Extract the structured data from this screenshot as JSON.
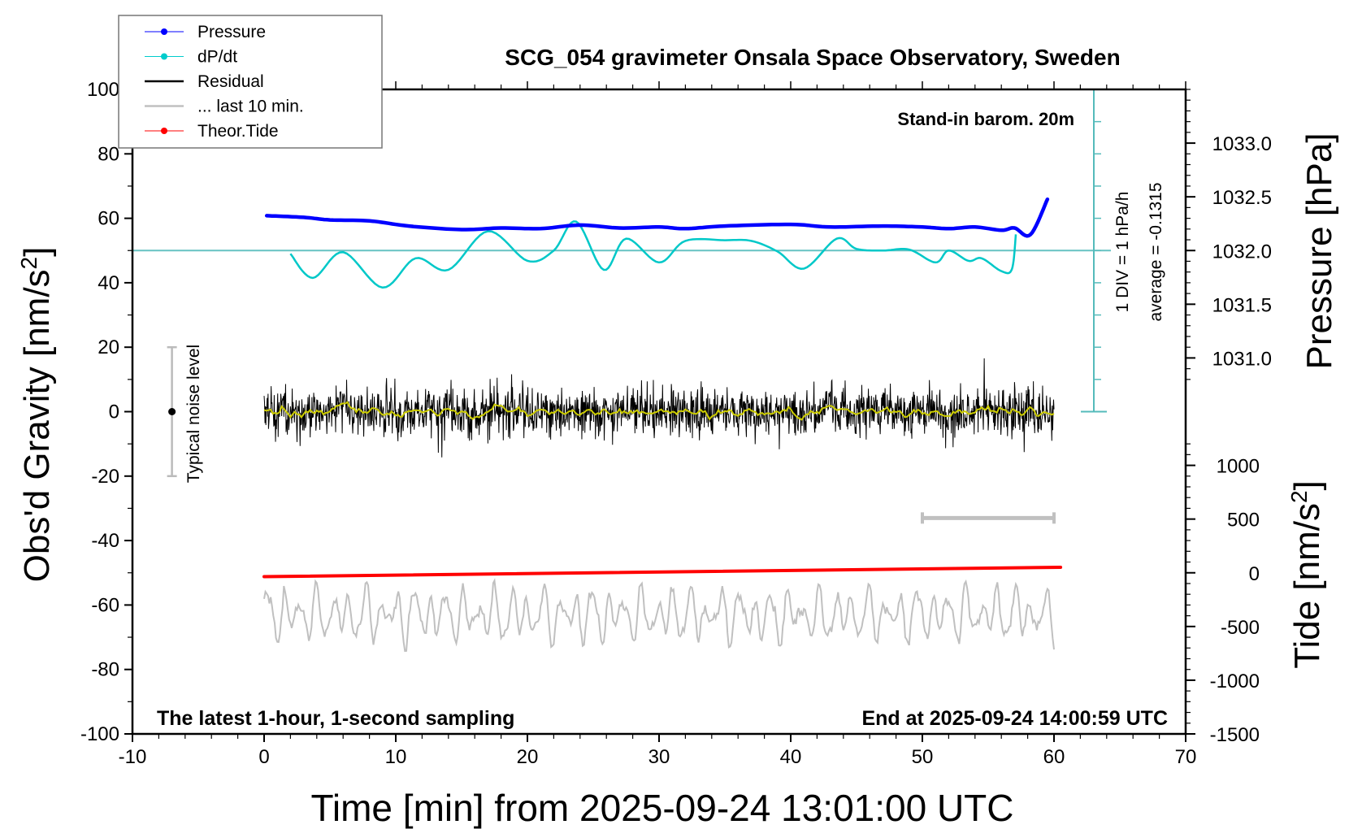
{
  "chart_data": {
    "type": "line",
    "title": "SCG_054 gravimeter Onsala Space Observatory, Sweden",
    "xlabel": "Time [min] from 2025-09-24 13:01:00 UTC",
    "ylabel": "Obs'd Gravity [nm/s",
    "ylabel_sup": "2",
    "ylabel_end": "]",
    "xlim": [
      -10,
      70
    ],
    "ylim": [
      -100,
      100
    ],
    "x_ticks": [
      "-10",
      "0",
      "10",
      "20",
      "30",
      "40",
      "50",
      "60",
      "70"
    ],
    "y_ticks": [
      "100",
      "80",
      "60",
      "40",
      "20",
      "0",
      "-20",
      "-40",
      "-60",
      "-80",
      "-100"
    ],
    "right_axis_pressure": {
      "label": "Pressure [hPa]",
      "ticks": [
        "1033.0",
        "1032.5",
        "1032.0",
        "1031.5",
        "1031.0"
      ]
    },
    "right_axis_tide": {
      "label": "Tide [nm/s",
      "label_sup": "2",
      "label_end": "]",
      "ticks": [
        "1000",
        "500",
        "0",
        "-500",
        "-1000",
        "-1500"
      ]
    },
    "dpdt_axis": {
      "div_label": "1 DIV = 1 hPa/h",
      "average_label": "average = -0.1315"
    },
    "annotations": {
      "barometer": "Stand-in barom. 20m",
      "sampling": "The latest 1-hour, 1-second sampling",
      "end_time": "End at 2025-09-24 14:00:59 UTC",
      "noise": "Typical noise level"
    },
    "noise_level_range": [
      -20,
      20
    ],
    "last10_marker_range_min": [
      50,
      60
    ],
    "legend": {
      "placement": "top-left",
      "items": [
        {
          "label": "Pressure",
          "color": "#0000ff",
          "marker": "dot"
        },
        {
          "label": "dP/dt",
          "color": "#00cccc",
          "marker": "dot"
        },
        {
          "label": "Residual",
          "color": "#000000",
          "marker": "none"
        },
        {
          "label": "... last 10 min.",
          "color": "#c0c0c0",
          "marker": "none"
        },
        {
          "label": "Theor.Tide",
          "color": "#ff0000",
          "marker": "dot"
        }
      ]
    },
    "series": [
      {
        "name": "Pressure",
        "unit": "hPa",
        "color": "#0000ff",
        "x": [
          0.2,
          3,
          5,
          8,
          11,
          15,
          18,
          21,
          24,
          27,
          30,
          32,
          35,
          40,
          43,
          47,
          50,
          52,
          54,
          56,
          57,
          58.2,
          59.5
        ],
        "y": [
          1032.324,
          1032.309,
          1032.285,
          1032.276,
          1032.228,
          1032.195,
          1032.21,
          1032.204,
          1032.237,
          1032.21,
          1032.219,
          1032.204,
          1032.228,
          1032.243,
          1032.219,
          1032.228,
          1032.219,
          1032.204,
          1032.219,
          1032.189,
          1032.21,
          1032.147,
          1032.477
        ]
      },
      {
        "name": "dP/dt",
        "unit": "hPa/h",
        "color": "#00c8c8",
        "x": [
          2,
          3.7,
          6,
          9,
          11.5,
          14,
          17,
          20,
          22,
          23.7,
          25.8,
          27.5,
          30,
          32,
          35,
          37,
          39,
          41,
          43.5,
          45,
          47,
          49,
          51,
          52,
          53.5,
          54.5,
          56,
          56.8,
          57.1
        ],
        "y": [
          -0.1,
          -0.85,
          -0.05,
          -1.15,
          -0.24,
          -0.6,
          0.6,
          -0.32,
          0,
          0.9,
          -0.6,
          0.37,
          -0.37,
          0.3,
          0.32,
          0.3,
          -0.03,
          -0.56,
          0.37,
          0.05,
          0,
          0.03,
          -0.37,
          0,
          -0.32,
          -0.24,
          -0.64,
          -0.58,
          0.5
        ]
      },
      {
        "name": "Residual",
        "unit": "nm/s2",
        "color": "#000000",
        "x_range": [
          0,
          60
        ]
      },
      {
        "name": "... last 10 min.",
        "color": "#c0c0c0",
        "x_range": [
          0,
          60
        ]
      },
      {
        "name": "Theor.Tide",
        "unit": "nm/s2",
        "color": "#ff0000",
        "x": [
          0,
          60.5
        ],
        "y": [
          -36,
          51
        ]
      }
    ],
    "grid": false
  }
}
